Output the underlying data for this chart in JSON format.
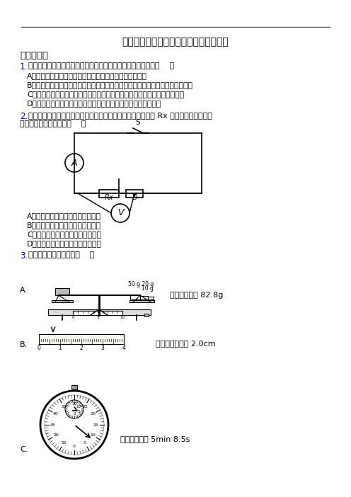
{
  "title": "深圳龙岗龙岗中学中考物理模拟考试集锦",
  "section1": "一、选择题",
  "q1_num": "1.",
  "q1_text": "生活处处有物理，留心观察皆学科，对以下现象解释错误的是（    ）",
  "q1_A": "A．高压锅是利用水的永点随气压增大而升高的特点制成的",
  "q1_B": "B．小汽车驾驶室前边的挡风玻璃不采用竖直安装的主要原因是为了排除像的干扰",
  "q1_C": "C．风能、水能、太阳能可以在自然界里源源不断地得到，它们是可再生能源",
  "q1_D": "D．远视眼看不清近处的景物，是因为景物的像落在视网膜的前方",
  "q2_num": "2.",
  "q2_text": "如图所示，是一种「伏安法」测电阴的电路图，下列关于电阴 Rx 的测量误差及其产生",
  "q2_text2": "原因的说法中正确的是（    ）",
  "q2_A": "A．测量值偏大，由于电流表有内阴",
  "q2_B": "B．测量值偏小，由于电压表有内阴",
  "q2_C": "C．测量值偏大，由于电压表有内阴",
  "q2_D": "D．测量值偏小，由于电流表有内阴",
  "q3_num": "3.",
  "q3_text": "下列工具读数正确的是（    ）",
  "q3_A_text": "天平的读数是 82.8g",
  "q3_B_text": "刻度尺的读数是 2.0cm",
  "q3_C_text": "秒表的读数是 5min 8.5s",
  "bg_color": "#ffffff",
  "text_color": "#000000",
  "title_color": "#000000",
  "num_color": "#0000cc",
  "line_color": "#000000"
}
